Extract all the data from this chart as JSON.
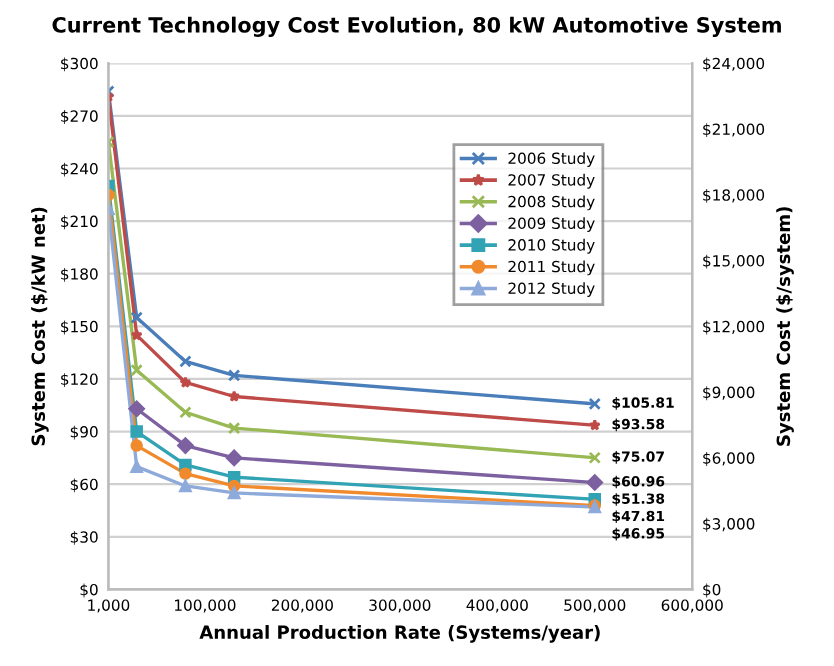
{
  "chart_data": {
    "type": "line",
    "title": "Current Technology Cost Evolution, 80 kW Automotive System",
    "xlabel": "Annual Production Rate (Systems/year)",
    "ylabel": "System Cost ($/kW net)",
    "y2label": "System Cost ($/system)",
    "x": [
      1000,
      30000,
      80000,
      130000,
      500000
    ],
    "series": [
      {
        "name": "2006 Study",
        "color": "#4a7ebb",
        "marker": "cross",
        "values": [
          284,
          155,
          130,
          122,
          105.81
        ],
        "value_labels": [
          null,
          null,
          null,
          null,
          "$105.81"
        ]
      },
      {
        "name": "2007 Study",
        "color": "#be4b48",
        "marker": "star",
        "values": [
          281,
          145,
          118,
          110,
          93.58
        ],
        "value_labels": [
          null,
          null,
          null,
          null,
          "$93.58"
        ]
      },
      {
        "name": "2008 Study",
        "color": "#98b954",
        "marker": "cross",
        "values": [
          255,
          125,
          101,
          92,
          75.07
        ],
        "value_labels": [
          null,
          null,
          null,
          null,
          "$75.07"
        ]
      },
      {
        "name": "2009 Study",
        "color": "#7d60a0",
        "marker": "diamond",
        "values": [
          null,
          103,
          82,
          75,
          60.96
        ],
        "value_labels": [
          null,
          null,
          null,
          null,
          "$60.96"
        ]
      },
      {
        "name": "2010 Study",
        "color": "#31a3b5",
        "marker": "square",
        "values": [
          230,
          90,
          71,
          64,
          51.38
        ],
        "value_labels": [
          null,
          null,
          null,
          null,
          "$51.38"
        ]
      },
      {
        "name": "2011 Study",
        "color": "#f08a2c",
        "marker": "circle",
        "values": [
          225,
          82,
          66,
          59,
          47.81
        ],
        "value_labels": [
          null,
          null,
          null,
          null,
          "$47.81"
        ]
      },
      {
        "name": "2012 Study",
        "color": "#8eaadb",
        "marker": "triangle",
        "values": [
          217,
          70,
          59,
          55,
          46.95
        ],
        "value_labels": [
          null,
          null,
          null,
          null,
          "$46.95"
        ]
      }
    ],
    "xlim": [
      1000,
      600000
    ],
    "xticks": [
      {
        "value": 1000,
        "label": "1,000"
      },
      {
        "value": 100000,
        "label": "100,000"
      },
      {
        "value": 200000,
        "label": "200,000"
      },
      {
        "value": 300000,
        "label": "300,000"
      },
      {
        "value": 400000,
        "label": "400,000"
      },
      {
        "value": 500000,
        "label": "500,000"
      },
      {
        "value": 600000,
        "label": "600,000"
      }
    ],
    "ylim": [
      0,
      300
    ],
    "yticks": [
      {
        "value": 0,
        "label": "$0"
      },
      {
        "value": 30,
        "label": "$30"
      },
      {
        "value": 60,
        "label": "$60"
      },
      {
        "value": 90,
        "label": "$90"
      },
      {
        "value": 120,
        "label": "$120"
      },
      {
        "value": 150,
        "label": "$150"
      },
      {
        "value": 180,
        "label": "$180"
      },
      {
        "value": 210,
        "label": "$210"
      },
      {
        "value": 240,
        "label": "$240"
      },
      {
        "value": 270,
        "label": "$270"
      },
      {
        "value": 300,
        "label": "$300"
      }
    ],
    "y2lim": [
      0,
      24000
    ],
    "y2ticks": [
      {
        "value": 0,
        "label": "$0"
      },
      {
        "value": 3000,
        "label": "$3,000"
      },
      {
        "value": 6000,
        "label": "$6,000"
      },
      {
        "value": 9000,
        "label": "$9,000"
      },
      {
        "value": 12000,
        "label": "$12,000"
      },
      {
        "value": 15000,
        "label": "$15,000"
      },
      {
        "value": 18000,
        "label": "$18,000"
      },
      {
        "value": 21000,
        "label": "$21,000"
      },
      {
        "value": 24000,
        "label": "$24,000"
      }
    ],
    "grid": "y",
    "legend": "top right"
  }
}
